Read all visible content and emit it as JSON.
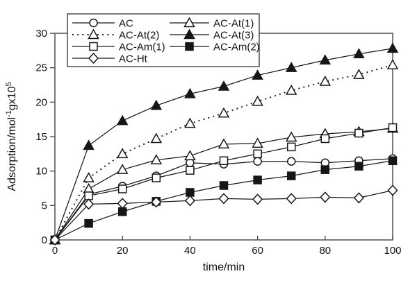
{
  "figure": {
    "background": "#ffffff",
    "data_color": "#161616",
    "frame_color": "#4f4f4f",
    "tick_label_color": "#111111"
  },
  "chart_data": {
    "type": "line",
    "title": "",
    "xlabel": "time/min",
    "ylabel": "Adsorption/mol⁻¹gx10⁵",
    "ylabel_parts": [
      {
        "t": "Adsorption/mol",
        "sup": false
      },
      {
        "t": "-1",
        "sup": true
      },
      {
        "t": "gx10",
        "sup": false
      },
      {
        "t": "5",
        "sup": true
      }
    ],
    "xlim": [
      0,
      100
    ],
    "ylim": [
      0,
      30
    ],
    "x_ticks": [
      0,
      20,
      40,
      60,
      80,
      100
    ],
    "y_ticks": [
      0,
      5,
      10,
      15,
      20,
      25,
      30
    ],
    "grid": false,
    "legend_position": "top-left-inside",
    "x": [
      0,
      10,
      20,
      30,
      40,
      50,
      60,
      70,
      80,
      90,
      100
    ],
    "series": [
      {
        "name": "AC",
        "marker": "circle",
        "fill": "open",
        "line": "solid",
        "values": [
          0,
          6.6,
          7.8,
          9.3,
          11.2,
          11.0,
          11.4,
          11.4,
          11.2,
          11.5,
          11.8
        ]
      },
      {
        "name": "AC-At(1)",
        "marker": "triangle",
        "fill": "open",
        "line": "solid",
        "values": [
          0,
          7.4,
          10.2,
          11.6,
          12.2,
          13.9,
          14.0,
          14.9,
          15.4,
          15.7,
          16.2
        ]
      },
      {
        "name": "AC-At(2)",
        "marker": "triangle",
        "fill": "open",
        "line": "dotted",
        "values": [
          0,
          9.0,
          12.5,
          14.7,
          16.9,
          18.4,
          20.1,
          21.7,
          23.0,
          24.0,
          25.4
        ]
      },
      {
        "name": "AC-At(3)",
        "marker": "triangle",
        "fill": "filled",
        "line": "solid",
        "values": [
          0,
          13.7,
          17.3,
          19.5,
          21.2,
          22.3,
          23.9,
          25.0,
          26.1,
          27.0,
          27.8
        ]
      },
      {
        "name": "AC-Am(1)",
        "marker": "square",
        "fill": "open",
        "line": "solid",
        "values": [
          0,
          6.4,
          7.4,
          9.0,
          10.1,
          11.5,
          12.5,
          13.5,
          14.7,
          15.5,
          16.3
        ]
      },
      {
        "name": "AC-Am(2)",
        "marker": "square",
        "fill": "filled",
        "line": "solid",
        "values": [
          0,
          2.4,
          4.1,
          5.6,
          6.9,
          7.9,
          8.7,
          9.3,
          10.2,
          10.7,
          11.5
        ]
      },
      {
        "name": "AC-Ht",
        "marker": "diamond",
        "fill": "open",
        "line": "solid",
        "values": [
          0,
          5.2,
          5.3,
          5.5,
          5.7,
          6.0,
          5.9,
          6.0,
          6.2,
          6.1,
          7.2
        ]
      }
    ],
    "legend_rows": [
      [
        "AC",
        "AC-At(1)"
      ],
      [
        "AC-At(2)",
        "AC-At(3)"
      ],
      [
        "AC-Am(1)",
        "AC-Am(2)"
      ],
      [
        "AC-Ht",
        null
      ]
    ]
  }
}
